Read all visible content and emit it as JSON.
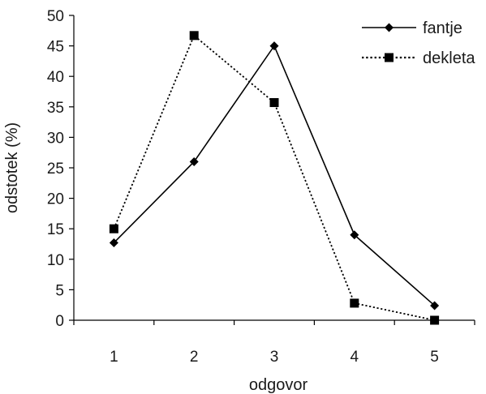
{
  "chart_data": {
    "type": "line",
    "title": "",
    "xlabel": "odgovor",
    "ylabel": "odstotek (%)",
    "categories": [
      "1",
      "2",
      "3",
      "4",
      "5"
    ],
    "ylim": [
      0,
      50
    ],
    "yticks": [
      "0",
      "5",
      "10",
      "15",
      "20",
      "25",
      "30",
      "35",
      "40",
      "45",
      "50"
    ],
    "grid": false,
    "legend_position": "top-right",
    "series": [
      {
        "name": "fantje",
        "values": [
          12.7,
          26.0,
          45.0,
          14.0,
          2.4
        ],
        "marker": "diamond",
        "line": "solid",
        "color": "#000000"
      },
      {
        "name": "dekleta",
        "values": [
          15.0,
          46.7,
          35.7,
          2.8,
          0.0
        ],
        "marker": "square",
        "line": "dotted",
        "color": "#000000"
      }
    ]
  }
}
